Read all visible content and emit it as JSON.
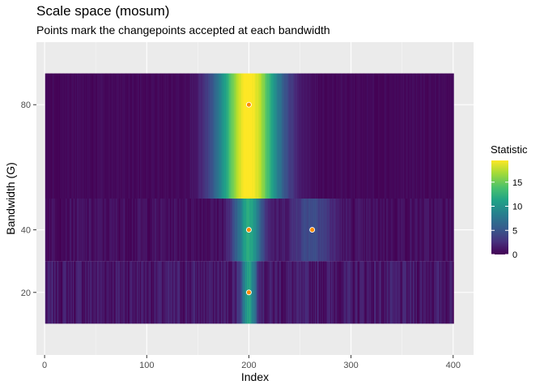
{
  "title": "Scale space (mosum)",
  "subtitle": "Points mark the changepoints accepted at each bandwidth",
  "chart_data": {
    "type": "heatmap",
    "title": "Scale space (mosum)",
    "subtitle": "Points mark the changepoints accepted at each bandwidth",
    "xlabel": "Index",
    "ylabel": "Bandwidth (G)",
    "xlim": [
      -8,
      420
    ],
    "ylim": [
      0,
      100
    ],
    "x_ticks": [
      0,
      100,
      200,
      300,
      400
    ],
    "y_ticks": [
      20,
      40,
      80
    ],
    "colorbar": {
      "title": "Statistic",
      "ticks": [
        0,
        5,
        10,
        15
      ],
      "range": [
        0,
        19.5
      ],
      "palette": "viridis"
    },
    "rows": [
      {
        "bandwidth": 20,
        "y_range": [
          10,
          30
        ],
        "peak_x": 200,
        "peak_value": 10,
        "peak_width": 8,
        "noise": 2.5
      },
      {
        "bandwidth": 40,
        "y_range": [
          30,
          50
        ],
        "peak_x": 200,
        "peak_value": 11,
        "peak_width": 14,
        "bump_x": 262,
        "bump_value": 4,
        "bump_width": 20,
        "noise": 1.5
      },
      {
        "bandwidth": 80,
        "y_range": [
          50,
          90
        ],
        "peak_x": 200,
        "peak_value": 19.5,
        "peak_width": 30,
        "noise": 0.8
      }
    ],
    "changepoints": [
      {
        "bandwidth": 80,
        "x": 200
      },
      {
        "bandwidth": 40,
        "x": 200
      },
      {
        "bandwidth": 40,
        "x": 262
      },
      {
        "bandwidth": 20,
        "x": 200
      }
    ],
    "grid": true,
    "legend": "right"
  }
}
